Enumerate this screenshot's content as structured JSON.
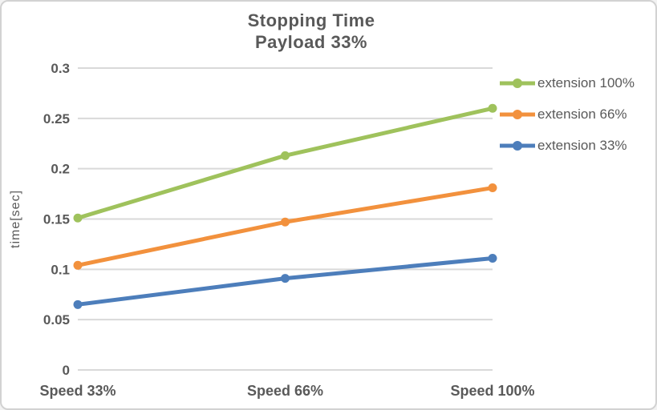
{
  "window": {
    "background_color": "#ffffff",
    "border_color": "#d2d2d2"
  },
  "chart_data": {
    "type": "line",
    "title": "Stopping Time",
    "subtitle": "Payload 33%",
    "xlabel": "",
    "ylabel": "time[sec]",
    "categories": [
      "Speed 33%",
      "Speed 66%",
      "Speed 100%"
    ],
    "series": [
      {
        "name": "extension 100%",
        "color": "#9fc25c",
        "values": [
          0.151,
          0.213,
          0.26
        ]
      },
      {
        "name": "extension 66%",
        "color": "#f2913d",
        "values": [
          0.104,
          0.147,
          0.181
        ]
      },
      {
        "name": "extension 33%",
        "color": "#4d7ebb",
        "values": [
          0.065,
          0.091,
          0.111
        ]
      }
    ],
    "ylim": [
      0,
      0.3
    ],
    "ytick_labels": [
      "0",
      "0.05",
      "0.1",
      "0.15",
      "0.2",
      "0.25",
      "0.3"
    ],
    "grid": true,
    "grid_color": "#d9d9d9",
    "text_color": "#595959",
    "legend_position": "right",
    "marker": "circle"
  }
}
